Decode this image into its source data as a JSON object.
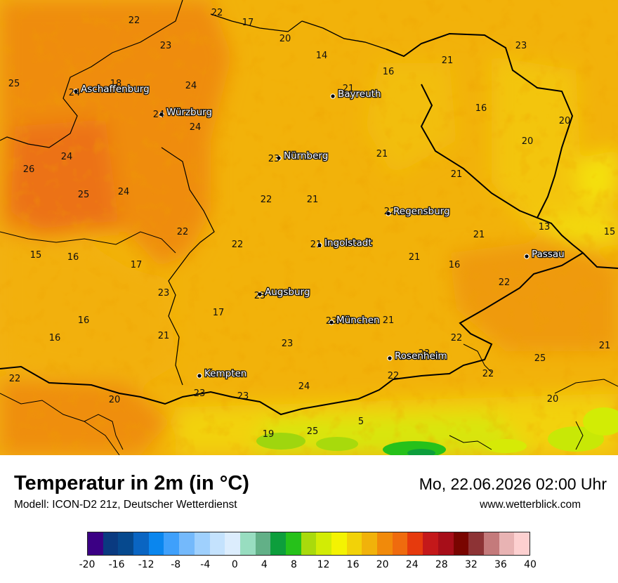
{
  "title": "Temperatur in 2m (in °C)",
  "model": "Modell: ICON-D2 21z, Deutscher Wetterdienst",
  "datetime": "Mo, 22.06.2026 02:00 Uhr",
  "website": "www.wetterblick.com",
  "cities": [
    "Aschaffenburg",
    "Würzburg",
    "Bayreuth",
    "Nürnberg",
    "Regensburg",
    "Ingolstadt",
    "Passau",
    "Augsburg",
    "München",
    "Rosenheim",
    "Kempten"
  ],
  "values": [
    "22",
    "17",
    "22",
    "20",
    "14",
    "23",
    "21",
    "16",
    "23",
    "25",
    "18",
    "24",
    "24",
    "21",
    "24",
    "16",
    "20",
    "24",
    "20",
    "23",
    "21",
    "24",
    "26",
    "21",
    "25",
    "24",
    "22",
    "21",
    "22",
    "13",
    "15",
    "22",
    "22",
    "21",
    "15",
    "16",
    "17",
    "21",
    "21",
    "16",
    "23",
    "23",
    "22",
    "17",
    "16",
    "23",
    "21",
    "16",
    "21",
    "22",
    "23",
    "23",
    "22",
    "24",
    "22",
    "22",
    "23",
    "23",
    "25",
    "21",
    "20",
    "20",
    "19",
    "25",
    "5"
  ],
  "legend": {
    "colors": [
      "#3b0084",
      "#0a3a80",
      "#06498e",
      "#0a65c2",
      "#0a86ee",
      "#3fa0fb",
      "#74b9fb",
      "#9fd0fd",
      "#c4e2fd",
      "#dcedfd",
      "#98ddc0",
      "#62b087",
      "#0d9e3c",
      "#26c11a",
      "#a9da0c",
      "#d2ec05",
      "#f4f302",
      "#f2d208",
      "#f1b20a",
      "#f18a0a",
      "#ef6b0e",
      "#e63a0d",
      "#c4181a",
      "#a70e19",
      "#790500",
      "#8d3335",
      "#c47a7b",
      "#e8b3b3",
      "#fdd0d0"
    ],
    "labels": [
      "-20",
      "-16",
      "-12",
      "-8",
      "-4",
      "0",
      "4",
      "8",
      "12",
      "16",
      "20",
      "24",
      "28",
      "32",
      "36",
      "40"
    ]
  }
}
